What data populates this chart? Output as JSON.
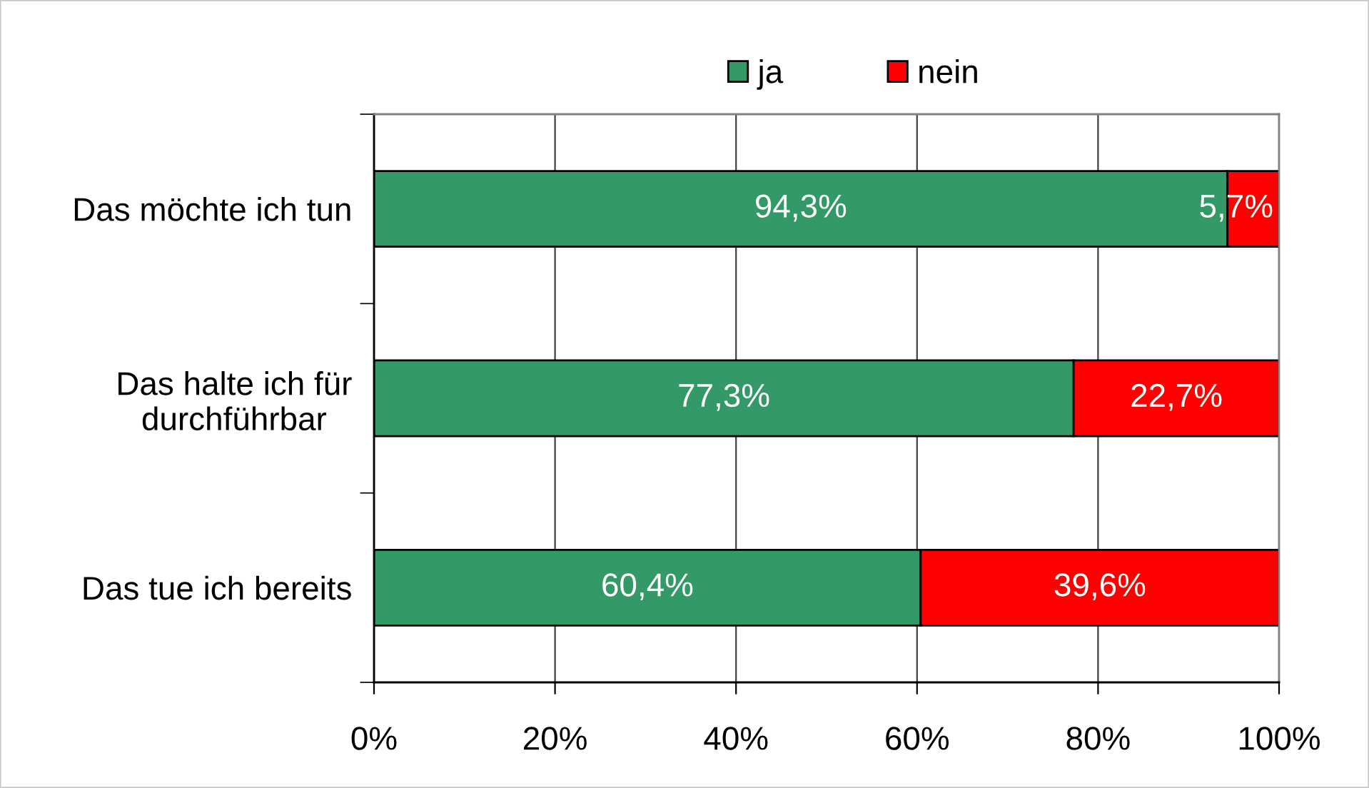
{
  "chart_data": {
    "type": "bar",
    "orientation": "horizontal",
    "stacked": true,
    "categories": [
      "Das möchte ich tun",
      "Das halte ich für\ndurchführbar",
      "Das tue ich bereits"
    ],
    "series": [
      {
        "name": "ja",
        "color": "#339966",
        "values": [
          94.3,
          77.3,
          60.4
        ],
        "value_labels": [
          "94,3%",
          "77,3%",
          "60,4%"
        ]
      },
      {
        "name": "nein",
        "color": "#ff0000",
        "values": [
          5.7,
          22.7,
          39.6
        ],
        "value_labels": [
          "5,7%",
          "22,7%",
          "39,6%"
        ]
      }
    ],
    "xlim": [
      0,
      100
    ],
    "xticks": [
      {
        "value": 0,
        "label": "0%"
      },
      {
        "value": 20,
        "label": "20%"
      },
      {
        "value": 40,
        "label": "40%"
      },
      {
        "value": 60,
        "label": "60%"
      },
      {
        "value": 80,
        "label": "80%"
      },
      {
        "value": 100,
        "label": "100%"
      }
    ],
    "grid": "x",
    "legend": "top"
  }
}
